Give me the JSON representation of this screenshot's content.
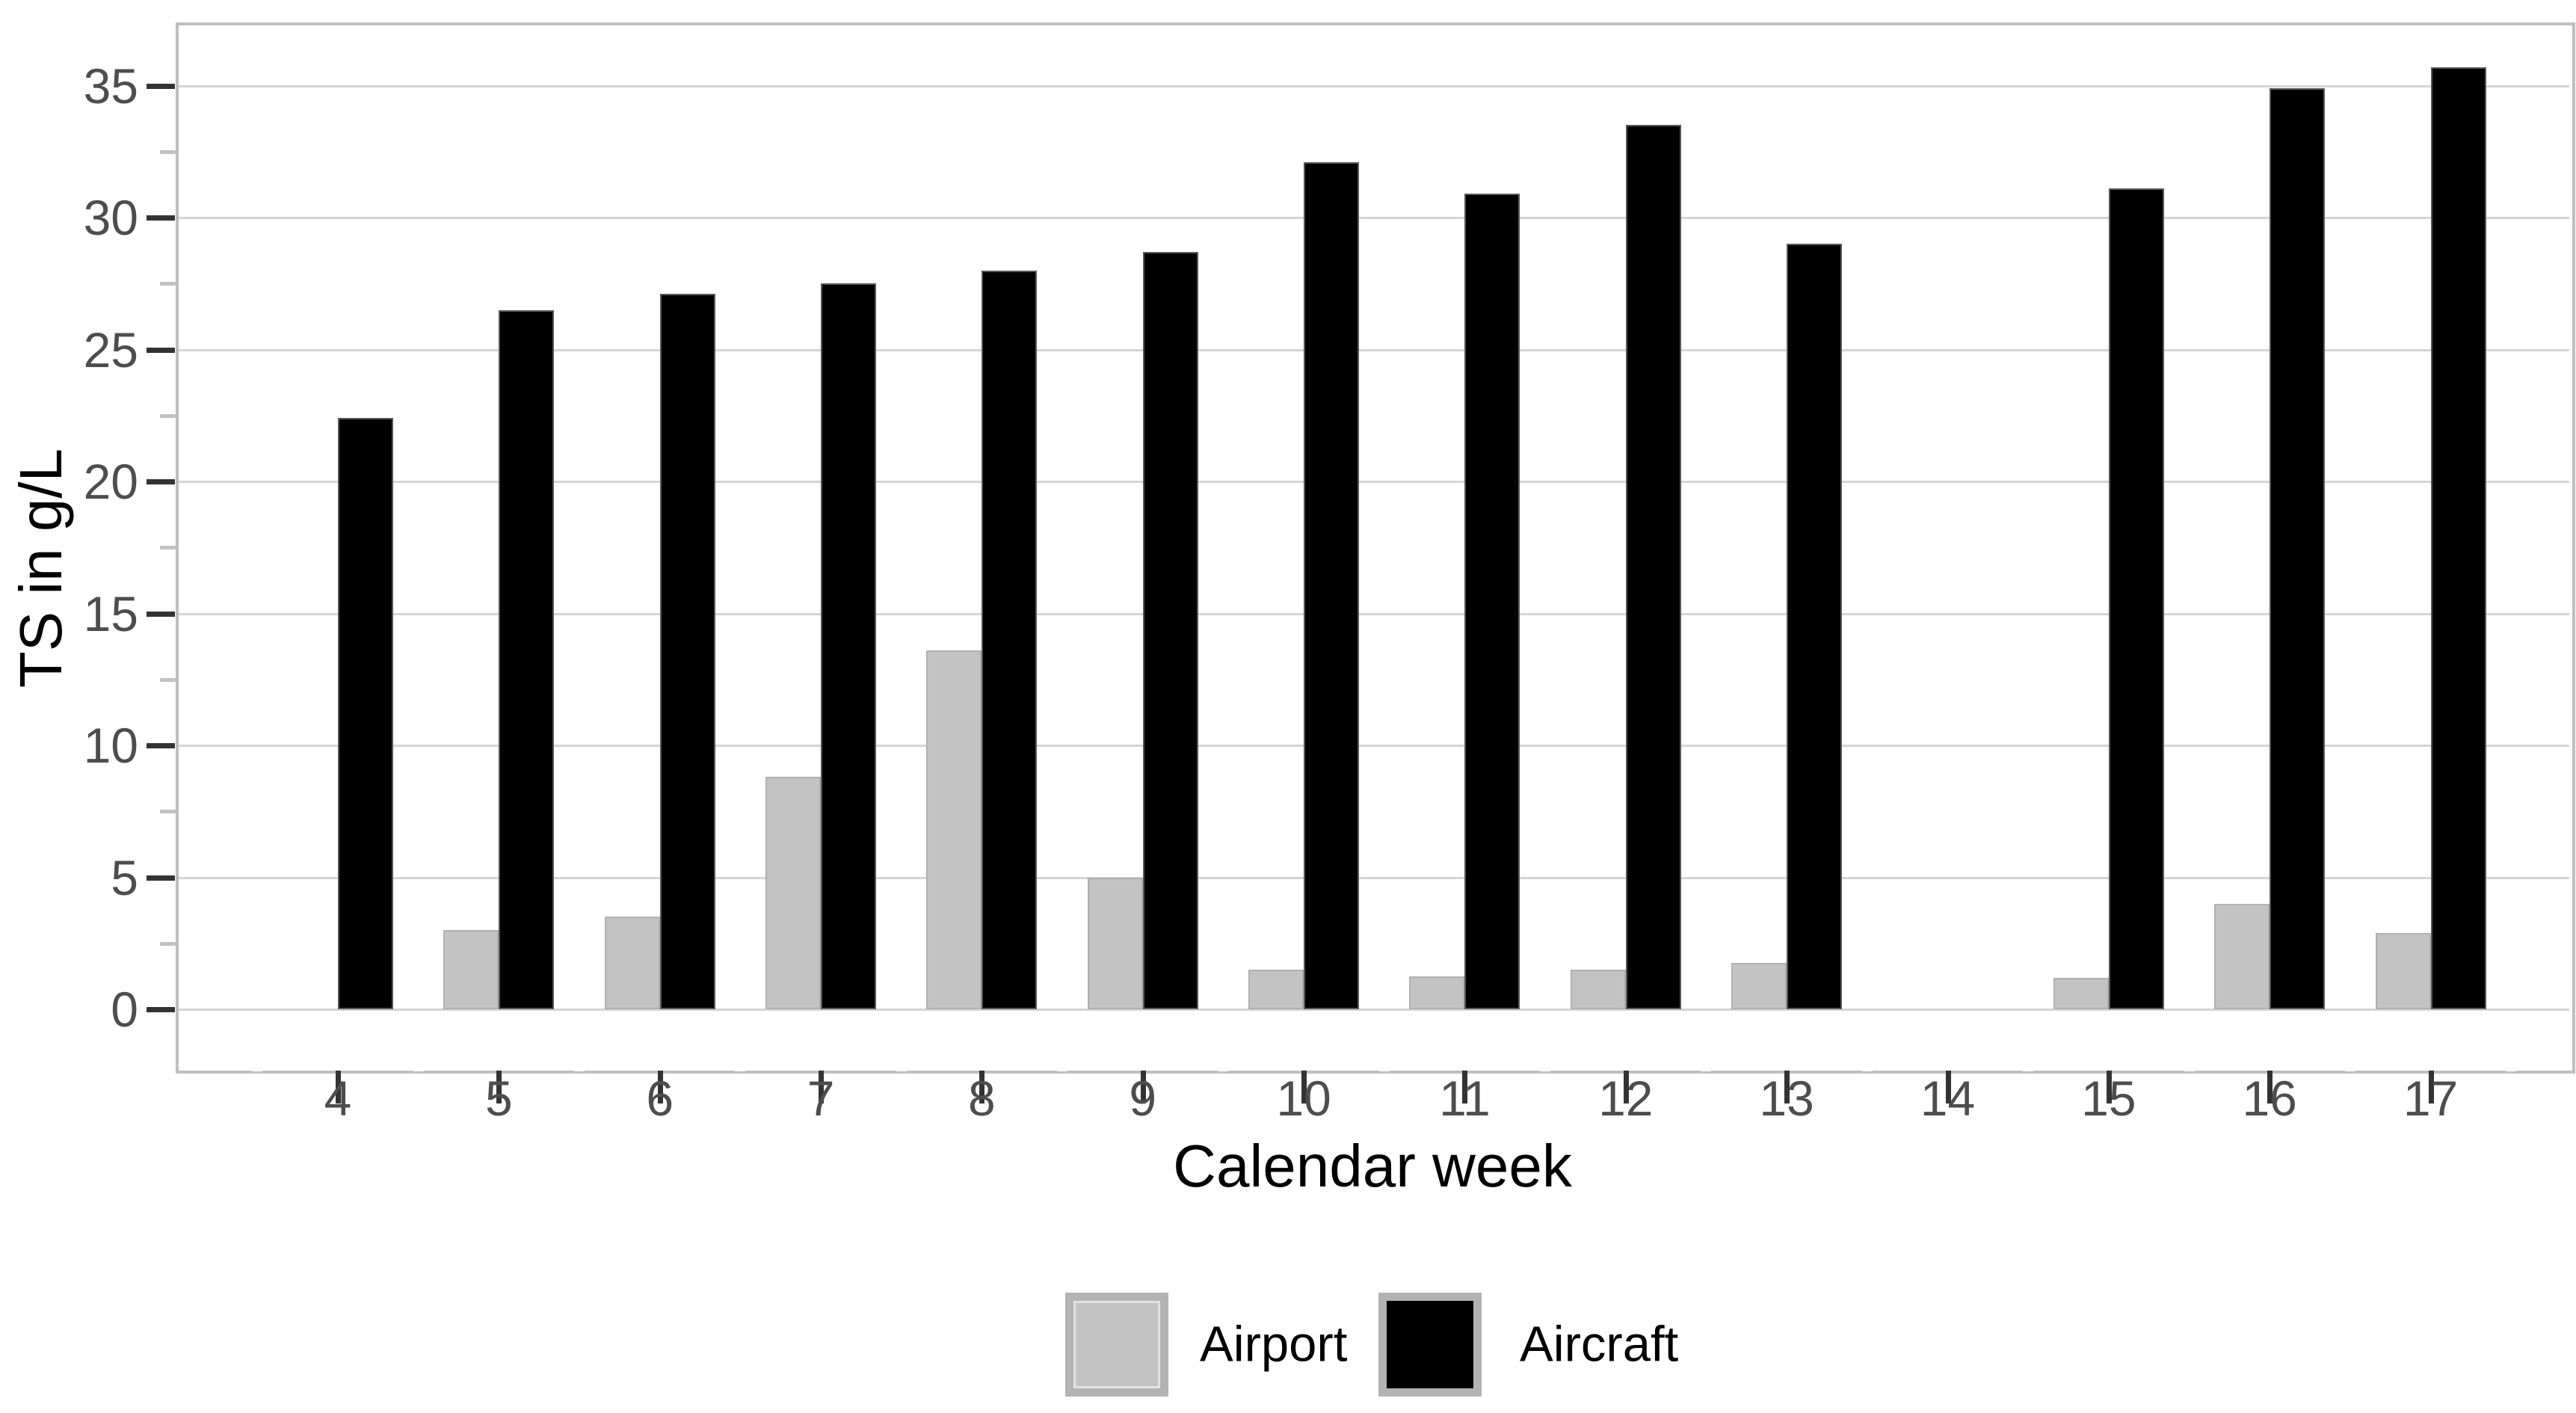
{
  "chart_data": {
    "type": "bar",
    "title": "",
    "xlabel": "Calendar week",
    "ylabel": "TS in g/L",
    "categories": [
      4,
      5,
      6,
      7,
      8,
      9,
      10,
      11,
      12,
      13,
      14,
      15,
      16,
      17
    ],
    "series": [
      {
        "name": "Airport",
        "color": "#C3C3C3",
        "values": [
          null,
          3.0,
          3.5,
          8.8,
          13.6,
          5.0,
          1.5,
          1.25,
          1.5,
          1.75,
          null,
          1.2,
          4.0,
          2.9
        ]
      },
      {
        "name": "Aircraft",
        "color": "#000000",
        "values": [
          22.4,
          26.5,
          27.1,
          27.5,
          28.0,
          28.7,
          32.1,
          30.9,
          33.5,
          29.0,
          null,
          31.1,
          34.9,
          35.7
        ]
      }
    ],
    "y_ticks": [
      0,
      5,
      10,
      15,
      20,
      25,
      30,
      35
    ],
    "y_minor_ticks": [
      2.5,
      7.5,
      12.5,
      17.5,
      22.5,
      27.5,
      32.5
    ],
    "ylim": [
      0,
      35.7
    ],
    "grid": "horizontal-major-only",
    "legend_position": "bottom",
    "bar_mode": "dodge"
  },
  "colors": {
    "gridline": "#D4D4D4",
    "panel_border": "#BEBEBE",
    "tick_major": "#333333",
    "tick_minor": "#C2C2C2",
    "tick_label": "#4D4D4D",
    "axis_title": "#000000",
    "legend_key_bg": "#B3B3B3"
  }
}
